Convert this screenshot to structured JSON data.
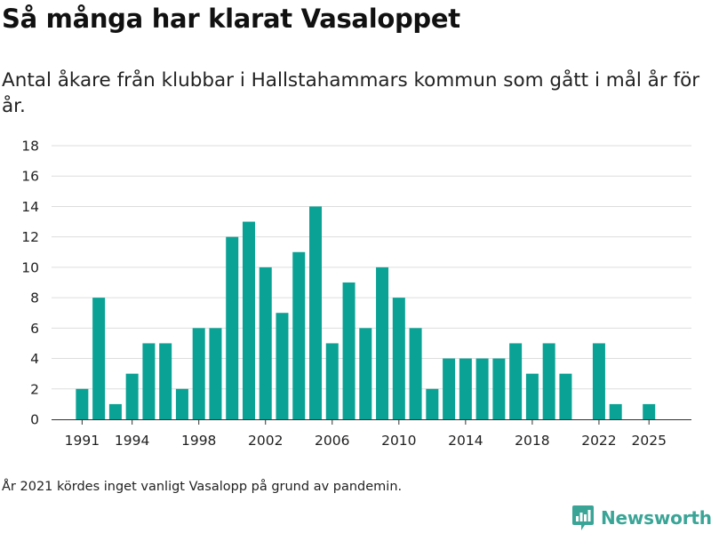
{
  "header": {
    "title": "Så många har klarat Vasaloppet",
    "subtitle": "Antal åkare från klubbar i Hallstahammars kommun som gått i mål år för år."
  },
  "footnote": "År 2021 kördes inget vanligt Vasalopp på grund av pandemin.",
  "brand": {
    "name": "Newsworthy",
    "color": "#3aa597"
  },
  "colors": {
    "bar": "#0aa295",
    "grid": "#dddddd",
    "axis": "#333333"
  },
  "chart_data": {
    "type": "bar",
    "title": "Så många har klarat Vasaloppet",
    "xlabel": "",
    "ylabel": "",
    "ylim": [
      0,
      18
    ],
    "yticks": [
      0,
      2,
      4,
      6,
      8,
      10,
      12,
      14,
      16,
      18
    ],
    "xticks": [
      1991,
      1994,
      1998,
      2002,
      2006,
      2010,
      2014,
      2018,
      2022,
      2025
    ],
    "categories": [
      1991,
      1992,
      1993,
      1994,
      1995,
      1996,
      1997,
      1998,
      1999,
      2000,
      2001,
      2002,
      2003,
      2004,
      2005,
      2006,
      2007,
      2008,
      2009,
      2010,
      2011,
      2012,
      2013,
      2014,
      2015,
      2016,
      2017,
      2018,
      2019,
      2020,
      2021,
      2022,
      2023,
      2024,
      2025
    ],
    "values": [
      2,
      8,
      1,
      3,
      5,
      5,
      2,
      6,
      6,
      12,
      13,
      10,
      7,
      11,
      14,
      5,
      9,
      6,
      10,
      8,
      6,
      2,
      4,
      4,
      4,
      4,
      5,
      3,
      5,
      3,
      0,
      5,
      1,
      0,
      1
    ],
    "grid": true,
    "legend": "none"
  }
}
